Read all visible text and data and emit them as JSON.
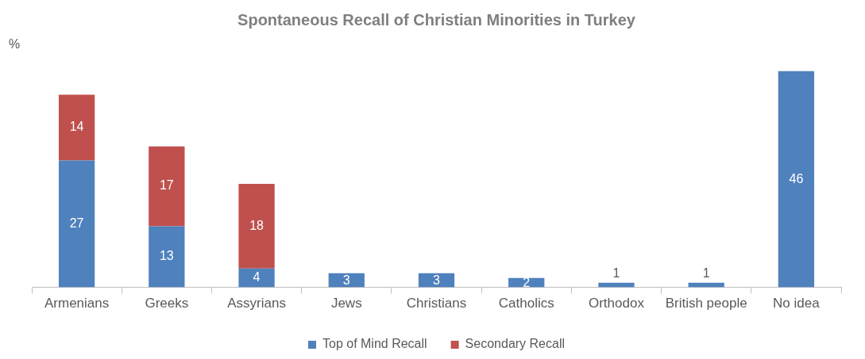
{
  "chart_data": {
    "type": "bar",
    "title": "Spontaneous Recall of Christian Minorities in Turkey",
    "ylabel": "%",
    "categories": [
      "Armenians",
      "Greeks",
      "Assyrians",
      "Jews",
      "Christians",
      "Catholics",
      "Orthodox",
      "British people",
      "No idea"
    ],
    "stacked": true,
    "data_labels": true,
    "legend": "bottom",
    "series": [
      {
        "name": "Top of Mind Recall",
        "color": "#4f81bd",
        "values": [
          27,
          13,
          4,
          3,
          3,
          2,
          1,
          1,
          46
        ]
      },
      {
        "name": "Secondary Recall",
        "color": "#c0504d",
        "values": [
          14,
          17,
          18,
          null,
          null,
          null,
          null,
          null,
          null
        ]
      }
    ]
  }
}
